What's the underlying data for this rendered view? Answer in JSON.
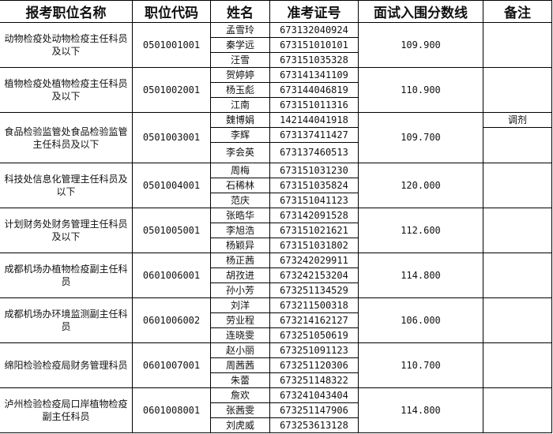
{
  "headers": [
    "报考职位名称",
    "职位代码",
    "姓名",
    "准考证号",
    "面试入围分数线",
    "备注"
  ],
  "groups": [
    {
      "position": "动物检疫处动物检疫主任科员及以下",
      "code": "0501001001",
      "score": "109.900",
      "candidates": [
        {
          "name": "孟雪玲",
          "id": "673132040924",
          "note": ""
        },
        {
          "name": "秦学远",
          "id": "673151010101",
          "note": ""
        },
        {
          "name": "汪雪",
          "id": "673151035328",
          "note": ""
        }
      ]
    },
    {
      "position": "植物检疫处植物检疫主任科员及以下",
      "code": "0501002001",
      "score": "110.900",
      "candidates": [
        {
          "name": "贺婷婷",
          "id": "673141341109",
          "note": ""
        },
        {
          "name": "杨玉彪",
          "id": "673144046819",
          "note": ""
        },
        {
          "name": "江南",
          "id": "673151011316",
          "note": ""
        }
      ]
    },
    {
      "position": "食品检验监管处食品检验监管主任科员及以下",
      "code": "0501003001",
      "score": "109.700",
      "candidates": [
        {
          "name": "魏博娟",
          "id": "142144041918",
          "note": "调剂"
        },
        {
          "name": "李辉",
          "id": "673137411427",
          "note": ""
        },
        {
          "name": "李会英",
          "id": "673137460513",
          "note": ""
        }
      ]
    },
    {
      "position": "科技处信息化管理主任科员及以下",
      "code": "0501004001",
      "score": "120.000",
      "candidates": [
        {
          "name": "周梅",
          "id": "673151031230",
          "note": ""
        },
        {
          "name": "石稀林",
          "id": "673151035824",
          "note": ""
        },
        {
          "name": "范庆",
          "id": "673151041123",
          "note": ""
        }
      ]
    },
    {
      "position": "计划财务处财务管理主任科员及以下",
      "code": "0501005001",
      "score": "112.600",
      "candidates": [
        {
          "name": "张晧华",
          "id": "673142091528",
          "note": ""
        },
        {
          "name": "李旭浩",
          "id": "673151021621",
          "note": ""
        },
        {
          "name": "杨颖异",
          "id": "673151031802",
          "note": ""
        }
      ]
    },
    {
      "position": "成都机场办植物检疫副主任科员",
      "code": "0601006001",
      "score": "114.800",
      "candidates": [
        {
          "name": "杨正茜",
          "id": "673242029911",
          "note": ""
        },
        {
          "name": "胡孜进",
          "id": "673242153204",
          "note": ""
        },
        {
          "name": "孙小芳",
          "id": "673251134529",
          "note": ""
        }
      ]
    },
    {
      "position": "成都机场办环境监测副主任科员",
      "code": "0601006002",
      "score": "106.000",
      "candidates": [
        {
          "name": "刘洋",
          "id": "673211500318",
          "note": ""
        },
        {
          "name": "劳业程",
          "id": "673214162127",
          "note": ""
        },
        {
          "name": "连晓雯",
          "id": "673251050619",
          "note": ""
        }
      ]
    },
    {
      "position": "绵阳检验检疫局财务管理科员",
      "code": "0601007001",
      "score": "110.700",
      "candidates": [
        {
          "name": "赵小丽",
          "id": "673251091123",
          "note": ""
        },
        {
          "name": "周茜茜",
          "id": "673251120306",
          "note": ""
        },
        {
          "name": "朱蕾",
          "id": "673251148322",
          "note": ""
        }
      ]
    },
    {
      "position": "泸州检验检疫局口岸植物检疫副主任科员",
      "code": "0601008001",
      "score": "114.800",
      "candidates": [
        {
          "name": "詹欢",
          "id": "673241043404",
          "note": ""
        },
        {
          "name": "张茜雯",
          "id": "673251147906",
          "note": ""
        },
        {
          "name": "刘虎威",
          "id": "673253613128",
          "note": ""
        }
      ]
    }
  ]
}
